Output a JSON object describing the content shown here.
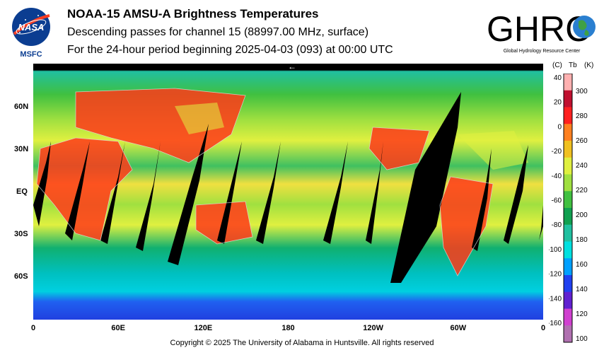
{
  "header": {
    "title": "NOAA-15 AMSU-A Brightness Temperatures",
    "subtitle_1": "Descending passes for channel 15 (88997.00 MHz, surface)",
    "subtitle_2": "For the 24-hour period beginning 2025-04-03 (093) at 00:00 UTC"
  },
  "logos": {
    "nasa_text": "NASA",
    "nasa_caption": "MSFC",
    "ghrc_text": "GHRC",
    "ghrc_caption": "Global Hydrology Resource Center"
  },
  "map": {
    "lat_labels": [
      {
        "text": "60N",
        "lat": 60
      },
      {
        "text": "30N",
        "lat": 30
      },
      {
        "text": "EQ",
        "lat": 0
      },
      {
        "text": "30S",
        "lat": -30
      },
      {
        "text": "60S",
        "lat": -60
      }
    ],
    "lon_labels": [
      {
        "text": "0",
        "lon": 0
      },
      {
        "text": "60E",
        "lon": 60
      },
      {
        "text": "120E",
        "lon": 120
      },
      {
        "text": "180",
        "lon": 180
      },
      {
        "text": "120W",
        "lon": 240
      },
      {
        "text": "60W",
        "lon": 300
      },
      {
        "text": "0",
        "lon": 360
      }
    ],
    "orbit_direction_arrow": "←"
  },
  "colorbar": {
    "header_c": "(C)",
    "header_tb": "Tb",
    "header_k": "(K)",
    "celsius_ticks": [
      "40",
      "20",
      "0",
      "-20",
      "-40",
      "-60",
      "-80",
      "-100",
      "-120",
      "-140",
      "-160"
    ],
    "kelvin_ticks": [
      "300",
      "280",
      "260",
      "240",
      "220",
      "200",
      "180",
      "160",
      "140",
      "120",
      "100"
    ],
    "colors": [
      "#b070b0",
      "#d040d0",
      "#6020d0",
      "#2040f0",
      "#00a0ff",
      "#00e0e0",
      "#20c0a0",
      "#10a050",
      "#40c040",
      "#a0e040",
      "#e0f040",
      "#f0c020",
      "#ff8020",
      "#ff2020",
      "#c01030",
      "#ffb0b0"
    ]
  },
  "footer": {
    "copyright": "Copyright © 2025 The University of Alabama in Huntsville.  All rights reserved"
  }
}
